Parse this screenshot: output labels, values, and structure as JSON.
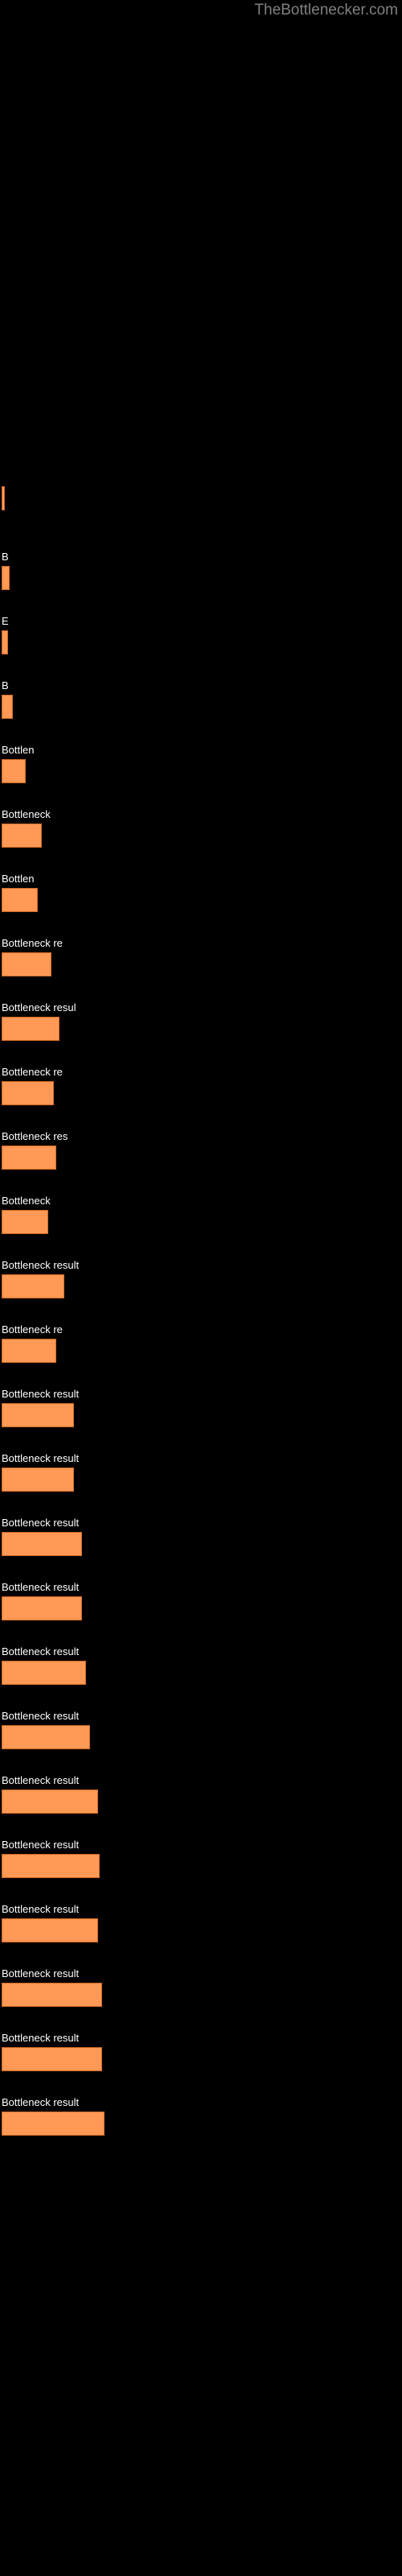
{
  "watermark": "TheBottlenecker.com",
  "chart": {
    "type": "bar",
    "orientation": "horizontal",
    "background_color": "#000000",
    "bar_color": "#ff9955",
    "bar_border_color": "#cc6622",
    "text_color": "#ffffff",
    "bar_text_color": "#000000",
    "watermark_color": "#808080",
    "label_fontsize": 13,
    "bars": [
      {
        "label": "",
        "width": 3,
        "text": ""
      },
      {
        "label": "B",
        "width": 10,
        "text": ""
      },
      {
        "label": "E",
        "width": 8,
        "text": ""
      },
      {
        "label": "B",
        "width": 14,
        "text": ""
      },
      {
        "label": "Bottlen",
        "width": 30,
        "text": ""
      },
      {
        "label": "Bottleneck",
        "width": 50,
        "text": ""
      },
      {
        "label": "Bottlen",
        "width": 45,
        "text": ""
      },
      {
        "label": "Bottleneck re",
        "width": 62,
        "text": ""
      },
      {
        "label": "Bottleneck resul",
        "width": 72,
        "text": ""
      },
      {
        "label": "Bottleneck re",
        "width": 65,
        "text": ""
      },
      {
        "label": "Bottleneck res",
        "width": 68,
        "text": ""
      },
      {
        "label": "Bottleneck",
        "width": 58,
        "text": ""
      },
      {
        "label": "Bottleneck result",
        "width": 78,
        "text": ""
      },
      {
        "label": "Bottleneck re",
        "width": 68,
        "text": ""
      },
      {
        "label": "Bottleneck result",
        "width": 90,
        "text": ""
      },
      {
        "label": "Bottleneck result",
        "width": 90,
        "text": ""
      },
      {
        "label": "Bottleneck result",
        "width": 100,
        "text": ""
      },
      {
        "label": "Bottleneck result",
        "width": 100,
        "text": ""
      },
      {
        "label": "Bottleneck result",
        "width": 105,
        "text": ""
      },
      {
        "label": "Bottleneck result",
        "width": 110,
        "text": ""
      },
      {
        "label": "Bottleneck result",
        "width": 120,
        "text": ""
      },
      {
        "label": "Bottleneck result",
        "width": 122,
        "text": ""
      },
      {
        "label": "Bottleneck result",
        "width": 120,
        "text": ""
      },
      {
        "label": "Bottleneck result",
        "width": 125,
        "text": ""
      },
      {
        "label": "Bottleneck result",
        "width": 125,
        "text": ""
      },
      {
        "label": "Bottleneck result",
        "width": 128,
        "text": ""
      }
    ]
  }
}
